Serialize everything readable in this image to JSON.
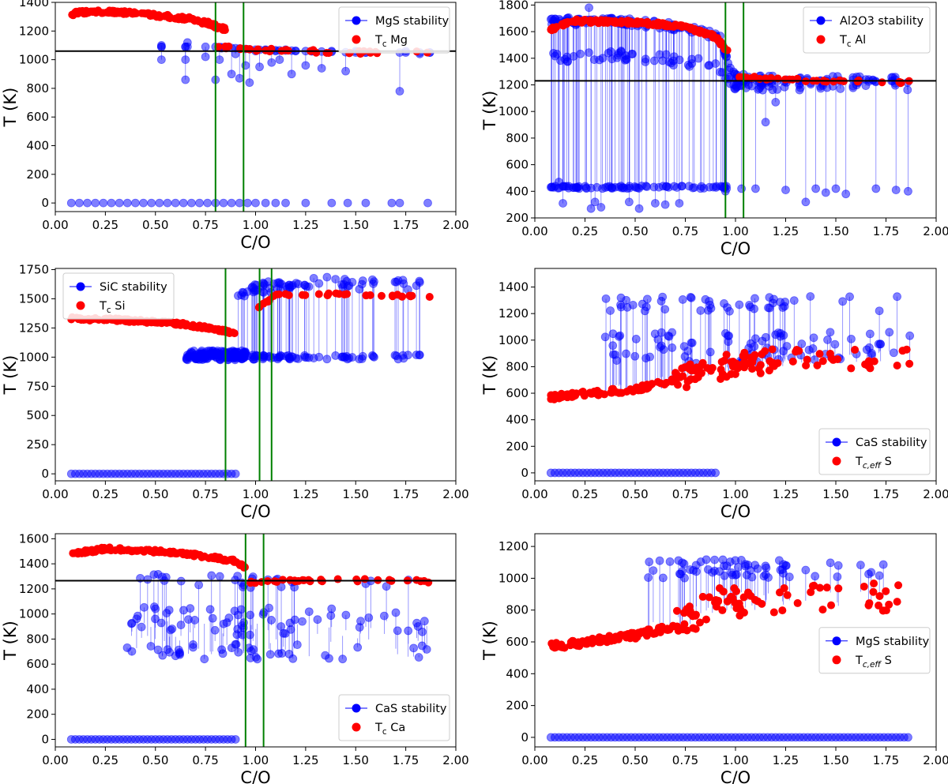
{
  "chart_data": [
    {
      "type": "scatter",
      "xlabel": "C/O",
      "ylabel": "T (K)",
      "xlim": [
        0.0,
        2.0
      ],
      "ylim": [
        -60,
        1400
      ],
      "xticks": [
        "0.00",
        "0.25",
        "0.50",
        "0.75",
        "1.00",
        "1.25",
        "1.50",
        "1.75",
        "2.00"
      ],
      "yticks": [
        "0",
        "200",
        "400",
        "600",
        "800",
        "1000",
        "1200",
        "1400"
      ],
      "legend": {
        "placement": "top-right",
        "entries": [
          {
            "label": "MgS stability",
            "symbol": "line-marker",
            "color": "#0000ff"
          },
          {
            "label": "T",
            "sub": "c",
            "suffix": " Mg",
            "symbol": "marker",
            "color": "#ff0000"
          }
        ]
      },
      "hlines": [
        1060
      ],
      "vlines": [
        0.8,
        0.94
      ],
      "series": [
        {
          "name": "MgS stability",
          "color": "#0000ff",
          "points": [
            [
              0.53,
              1000
            ],
            [
              0.53,
              1100
            ],
            [
              0.65,
              860
            ],
            [
              0.65,
              1000
            ],
            [
              0.66,
              1120
            ],
            [
              0.75,
              1020
            ],
            [
              0.8,
              860
            ],
            [
              0.82,
              1000
            ],
            [
              0.83,
              1080
            ],
            [
              0.88,
              900
            ],
            [
              0.9,
              1040
            ],
            [
              0.92,
              870
            ],
            [
              0.95,
              960
            ],
            [
              0.97,
              840
            ],
            [
              1.0,
              1060
            ],
            [
              1.02,
              950
            ],
            [
              1.05,
              1070
            ],
            [
              1.08,
              980
            ],
            [
              1.1,
              1060
            ],
            [
              1.12,
              1000
            ],
            [
              1.15,
              1070
            ],
            [
              1.18,
              900
            ],
            [
              1.2,
              1060
            ],
            [
              1.25,
              960
            ],
            [
              1.28,
              1060
            ],
            [
              1.33,
              940
            ],
            [
              1.38,
              1060
            ],
            [
              1.45,
              920
            ],
            [
              1.5,
              1060
            ],
            [
              1.55,
              1050
            ],
            [
              1.72,
              780
            ],
            [
              1.75,
              1060
            ],
            [
              1.82,
              1040
            ],
            [
              1.87,
              1050
            ]
          ],
          "floor": [
            0.08,
            0.12,
            0.16,
            0.2,
            0.24,
            0.28,
            0.32,
            0.36,
            0.4,
            0.44,
            0.48,
            0.52,
            0.56,
            0.6,
            0.64,
            0.68,
            0.72,
            0.76,
            0.8,
            0.84,
            0.88,
            0.92,
            0.96,
            1.0,
            1.05,
            1.1,
            1.15,
            1.25,
            1.38,
            1.46,
            1.55,
            1.68,
            1.72,
            1.86
          ]
        },
        {
          "name": "Tc Mg",
          "color": "#ff0000",
          "curve": [
            [
              0.08,
              1320
            ],
            [
              0.2,
              1340
            ],
            [
              0.35,
              1330
            ],
            [
              0.5,
              1310
            ],
            [
              0.65,
              1290
            ],
            [
              0.75,
              1260
            ],
            [
              0.85,
              1210
            ]
          ],
          "flat": [
            [
              0.8,
              1090
            ],
            [
              1.0,
              1070
            ],
            [
              1.25,
              1060
            ],
            [
              1.5,
              1050
            ],
            [
              1.87,
              1050
            ]
          ]
        }
      ]
    },
    {
      "type": "scatter",
      "xlabel": "C/O",
      "ylabel": "T (K)",
      "xlim": [
        0.0,
        2.0
      ],
      "ylim": [
        200,
        1820
      ],
      "xticks": [
        "0.00",
        "0.25",
        "0.50",
        "0.75",
        "1.00",
        "1.25",
        "1.50",
        "1.75",
        "2.00"
      ],
      "yticks": [
        "200",
        "400",
        "600",
        "800",
        "1000",
        "1200",
        "1400",
        "1600",
        "1800"
      ],
      "legend": {
        "placement": "top-right",
        "entries": [
          {
            "label": "Al2O3 stability",
            "symbol": "line-marker",
            "color": "#0000ff"
          },
          {
            "label": "T",
            "sub": "c",
            "suffix": " Al",
            "symbol": "marker",
            "color": "#ff0000"
          }
        ]
      },
      "hlines": [
        1230
      ],
      "vlines": [
        0.95,
        1.04
      ],
      "series": [
        {
          "name": "Al2O3 stability",
          "color": "#0000ff",
          "band_top": [
            [
              0.08,
              1680
            ],
            [
              0.5,
              1670
            ],
            [
              0.8,
              1620
            ],
            [
              0.93,
              1540
            ],
            [
              0.98,
              1280
            ],
            [
              1.1,
              1240
            ],
            [
              1.87,
              1230
            ]
          ],
          "band_low": [
            [
              0.08,
              1400
            ],
            [
              0.5,
              1420
            ],
            [
              0.9,
              1350
            ],
            [
              0.98,
              1200
            ]
          ],
          "floor_y": 430,
          "floor_x": [
            0.2,
            0.9
          ],
          "outliers": [
            [
              0.12,
              470
            ],
            [
              0.14,
              310
            ],
            [
              0.27,
              1780
            ],
            [
              0.28,
              270
            ],
            [
              0.3,
              320
            ],
            [
              0.33,
              280
            ],
            [
              0.4,
              430
            ],
            [
              0.47,
              320
            ],
            [
              0.52,
              270
            ],
            [
              0.6,
              310
            ],
            [
              0.65,
              300
            ],
            [
              0.72,
              310
            ],
            [
              0.95,
              400
            ],
            [
              1.03,
              420
            ],
            [
              1.1,
              420
            ],
            [
              1.15,
              920
            ],
            [
              1.2,
              1070
            ],
            [
              1.25,
              410
            ],
            [
              1.35,
              320
            ],
            [
              1.4,
              420
            ],
            [
              1.45,
              390
            ],
            [
              1.5,
              420
            ],
            [
              1.55,
              380
            ],
            [
              1.7,
              420
            ],
            [
              1.8,
              410
            ],
            [
              1.86,
              400
            ]
          ]
        },
        {
          "name": "Tc Al",
          "color": "#ff0000",
          "curve": [
            [
              0.08,
              1620
            ],
            [
              0.2,
              1680
            ],
            [
              0.5,
              1670
            ],
            [
              0.75,
              1640
            ],
            [
              0.9,
              1560
            ],
            [
              0.96,
              1450
            ]
          ],
          "flat": [
            [
              1.0,
              1270
            ],
            [
              1.2,
              1240
            ],
            [
              1.5,
              1230
            ],
            [
              1.87,
              1220
            ]
          ]
        }
      ]
    },
    {
      "type": "scatter",
      "xlabel": "C/O",
      "ylabel": "T (K)",
      "xlim": [
        0.0,
        2.0
      ],
      "ylim": [
        -60,
        1760
      ],
      "xticks": [
        "0.00",
        "0.25",
        "0.50",
        "0.75",
        "1.00",
        "1.25",
        "1.50",
        "1.75",
        "2.00"
      ],
      "yticks": [
        "0",
        "250",
        "500",
        "750",
        "1000",
        "1250",
        "1500",
        "1750"
      ],
      "legend": {
        "placement": "top-left",
        "entries": [
          {
            "label": "SiC stability",
            "symbol": "line-marker",
            "color": "#0000ff"
          },
          {
            "label": "T",
            "sub": "c",
            "suffix": " Si",
            "symbol": "marker",
            "color": "#ff0000"
          }
        ]
      },
      "hlines": [],
      "vlines": [
        0.85,
        1.02,
        1.08
      ],
      "series": [
        {
          "name": "SiC stability",
          "color": "#0000ff",
          "low_band": [
            [
              0.65,
              1000
            ],
            [
              1.87,
              1000
            ]
          ],
          "high_band": [
            [
              0.9,
              1550
            ],
            [
              1.2,
              1640
            ],
            [
              1.87,
              1620
            ]
          ],
          "floor": [
            0.08,
            0.9
          ]
        },
        {
          "name": "Tc Si",
          "color": "#ff0000",
          "curve": [
            [
              0.08,
              1330
            ],
            [
              0.3,
              1320
            ],
            [
              0.6,
              1290
            ],
            [
              0.8,
              1240
            ],
            [
              0.9,
              1200
            ]
          ],
          "flat": [
            [
              1.0,
              1400
            ],
            [
              1.1,
              1530
            ],
            [
              1.5,
              1540
            ],
            [
              1.87,
              1520
            ]
          ]
        }
      ]
    },
    {
      "type": "scatter",
      "xlabel": "C/O",
      "ylabel": "T (K)",
      "xlim": [
        0.0,
        2.0
      ],
      "ylim": [
        -60,
        1540
      ],
      "xticks": [
        "0.00",
        "0.25",
        "0.50",
        "0.75",
        "1.00",
        "1.25",
        "1.50",
        "1.75",
        "2.00"
      ],
      "yticks": [
        "0",
        "200",
        "400",
        "600",
        "800",
        "1000",
        "1200",
        "1400"
      ],
      "legend": {
        "placement": "bottom-right",
        "entries": [
          {
            "label": "CaS stability",
            "symbol": "line-marker",
            "color": "#0000ff"
          },
          {
            "label": "T",
            "sub": "c,eff",
            "suffix": " S",
            "symbol": "marker",
            "color": "#ff0000"
          }
        ]
      },
      "hlines": [],
      "vlines": [],
      "series": [
        {
          "name": "CaS stability",
          "color": "#0000ff",
          "levels": [
            1000,
            880,
            1270
          ],
          "floor": [
            0.08,
            0.9
          ]
        },
        {
          "name": "Tc,eff S",
          "color": "#ff0000",
          "trend": [
            [
              0.08,
              570
            ],
            [
              0.5,
              630
            ],
            [
              0.75,
              720
            ],
            [
              1.0,
              820
            ],
            [
              1.25,
              850
            ],
            [
              1.5,
              870
            ],
            [
              1.87,
              880
            ]
          ]
        }
      ]
    },
    {
      "type": "scatter",
      "xlabel": "C/O",
      "ylabel": "T (K)",
      "xlim": [
        0.0,
        2.0
      ],
      "ylim": [
        -60,
        1640
      ],
      "xticks": [
        "0.00",
        "0.25",
        "0.50",
        "0.75",
        "1.00",
        "1.25",
        "1.50",
        "1.75",
        "2.00"
      ],
      "yticks": [
        "0",
        "200",
        "400",
        "600",
        "800",
        "1000",
        "1200",
        "1400",
        "1600"
      ],
      "legend": {
        "placement": "bottom-right",
        "entries": [
          {
            "label": "CaS stability",
            "symbol": "line-marker",
            "color": "#0000ff"
          },
          {
            "label": "T",
            "sub": "c",
            "suffix": " Ca",
            "symbol": "marker",
            "color": "#ff0000"
          }
        ]
      },
      "hlines": [
        1265
      ],
      "vlines": [
        0.95,
        1.04
      ],
      "series": [
        {
          "name": "CaS stability",
          "color": "#0000ff",
          "levels": [
            1000,
            880,
            1270,
            700
          ],
          "floor": [
            0.08,
            0.9
          ]
        },
        {
          "name": "Tc Ca",
          "color": "#ff0000",
          "curve": [
            [
              0.08,
              1480
            ],
            [
              0.25,
              1520
            ],
            [
              0.5,
              1500
            ],
            [
              0.7,
              1470
            ],
            [
              0.9,
              1420
            ],
            [
              0.95,
              1370
            ]
          ],
          "flat": [
            [
              0.97,
              1250
            ],
            [
              1.2,
              1270
            ],
            [
              1.5,
              1270
            ],
            [
              1.87,
              1260
            ]
          ]
        }
      ]
    },
    {
      "type": "scatter",
      "xlabel": "C/O",
      "ylabel": "T (K)",
      "xlim": [
        0.0,
        2.0
      ],
      "ylim": [
        -60,
        1280
      ],
      "xticks": [
        "0.00",
        "0.25",
        "0.50",
        "0.75",
        "1.00",
        "1.25",
        "1.50",
        "1.75",
        "2.00"
      ],
      "yticks": [
        "0",
        "200",
        "400",
        "600",
        "800",
        "1000",
        "1200"
      ],
      "legend": {
        "placement": "center-right",
        "entries": [
          {
            "label": "MgS stability",
            "symbol": "line-marker",
            "color": "#0000ff"
          },
          {
            "label": "T",
            "sub": "c,eff",
            "suffix": " S",
            "symbol": "marker",
            "color": "#ff0000"
          }
        ]
      },
      "hlines": [],
      "vlines": [],
      "series": [
        {
          "name": "MgS stability",
          "color": "#0000ff",
          "levels": [
            1060
          ],
          "floor": [
            0.08,
            1.87
          ]
        },
        {
          "name": "Tc,eff S",
          "color": "#ff0000",
          "trend": [
            [
              0.08,
              570
            ],
            [
              0.5,
              640
            ],
            [
              0.75,
              720
            ],
            [
              0.9,
              850
            ],
            [
              1.2,
              860
            ],
            [
              1.5,
              880
            ],
            [
              1.87,
              880
            ]
          ]
        }
      ]
    }
  ]
}
